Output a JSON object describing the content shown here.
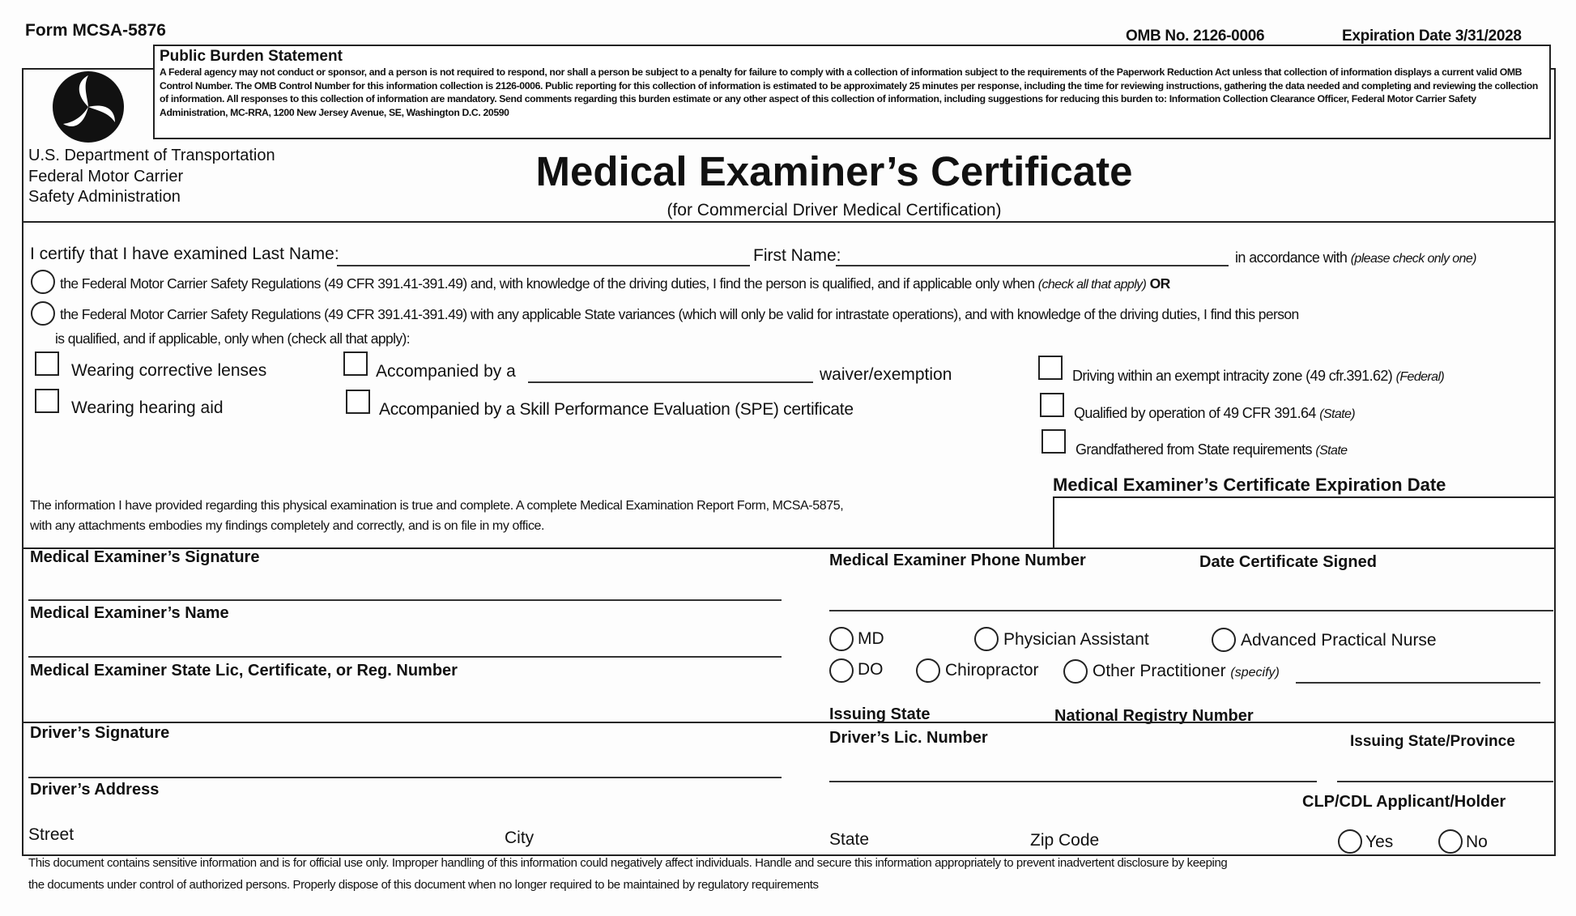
{
  "header": {
    "form_number": "Form MCSA-5876",
    "omb": "OMB No. 2126-0006",
    "expiration": "Expiration Date 3/31/2028"
  },
  "burden": {
    "title": "Public Burden Statement",
    "text": "A Federal agency may not conduct or sponsor, and a person is not required to respond, nor shall a person be subject to a penalty for failure to comply with a collection of information subject to the requirements of the Paperwork Reduction Act unless that collection of information displays a current valid OMB Control Number. The OMB Control Number for this information collection is 2126-0006. Public reporting for this collection of information is estimated to be approximately 25 minutes per response, including the time for reviewing instructions, gathering the data needed and completing and reviewing the collection of information. All responses to this collection of information are mandatory. Send comments regarding this burden estimate or any other aspect of this collection of information, including suggestions for reducing this burden to: Information Collection Clearance Officer, Federal Motor Carrier Safety Administration, MC-RRA, 1200 New Jersey Avenue, SE, Washington D.C. 20590"
  },
  "agency": {
    "line1": "U.S. Department of Transportation",
    "line2": "Federal Motor Carrier",
    "line3": "Safety Administration"
  },
  "title": "Medical Examiner’s Certificate",
  "subtitle": "(for Commercial Driver Medical Certification)",
  "certify": {
    "prefix": "I certify that I have examined Last Name:",
    "first_name": "First Name:",
    "suffix": "in accordance with",
    "suffix_note": "(please check only one)"
  },
  "option1": {
    "text": "the Federal Motor Carrier Safety Regulations (49 CFR 391.41-391.49) and, with knowledge of the driving duties, I find the person is qualified, and if applicable only when",
    "note": "(check all that apply)",
    "or": "OR"
  },
  "option2": {
    "text": "the Federal Motor Carrier Safety Regulations (49 CFR 391.41-391.49) with any applicable State variances (which will only be valid for intrastate operations), and with knowledge of the driving duties, I find this person",
    "text2": "is qualified, and if applicable, only when (check all that apply):"
  },
  "conditions": {
    "lenses": "Wearing corrective lenses",
    "hearing": "Wearing hearing aid",
    "accompanied": "Accompanied by a",
    "waiver": "waiver/exemption",
    "spe": "Accompanied by a Skill Performance Evaluation (SPE) certificate",
    "intracity": "Driving within an exempt intracity zone (49 cfr.391.62)",
    "intracity_note": "(Federal)",
    "qualified": "Qualified by operation of 49 CFR 391.64",
    "qualified_note": "(State)",
    "grandfathered": "Grandfathered from State requirements",
    "grandfathered_note": "(State"
  },
  "attest": {
    "line1": "The information I have provided regarding this physical examination is true and complete. A complete Medical Examination Report Form, MCSA-5875,",
    "line2": "with any attachments embodies my findings completely and correctly, and is on file in my office."
  },
  "expiration_label": "Medical Examiner’s Certificate Expiration Date",
  "fields": {
    "me_signature": "Medical Examiner’s Signature",
    "me_phone": "Medical Examiner Phone Number",
    "date_signed": "Date Certificate Signed",
    "me_name": "Medical Examiner’s Name",
    "me_license": "Medical Examiner State Lic, Certificate, or Reg. Number",
    "issuing_state": "Issuing State",
    "registry": "National Registry Number",
    "driver_signature": "Driver’s Signature",
    "driver_license": "Driver’s Lic. Number",
    "driver_state": "Issuing State/Province",
    "driver_address": "Driver’s Address",
    "clp": "CLP/CDL Applicant/Holder",
    "street": "Street",
    "city": "City",
    "state": "State",
    "zip": "Zip Code",
    "yes": "Yes",
    "no": "No"
  },
  "credentials": {
    "md": "MD",
    "pa": "Physician Assistant",
    "apn": "Advanced Practical Nurse",
    "do": "DO",
    "chiro": "Chiropractor",
    "other": "Other Practitioner",
    "other_note": "(specify)"
  },
  "footer": {
    "line1": "This document contains sensitive information and is for official use only. Improper handling of this information could negatively affect individuals. Handle and secure this information appropriately to prevent inadvertent disclosure by keeping",
    "line2": "the documents under control of authorized persons. Properly dispose of this document when no longer required to be maintained by regulatory requirements"
  }
}
